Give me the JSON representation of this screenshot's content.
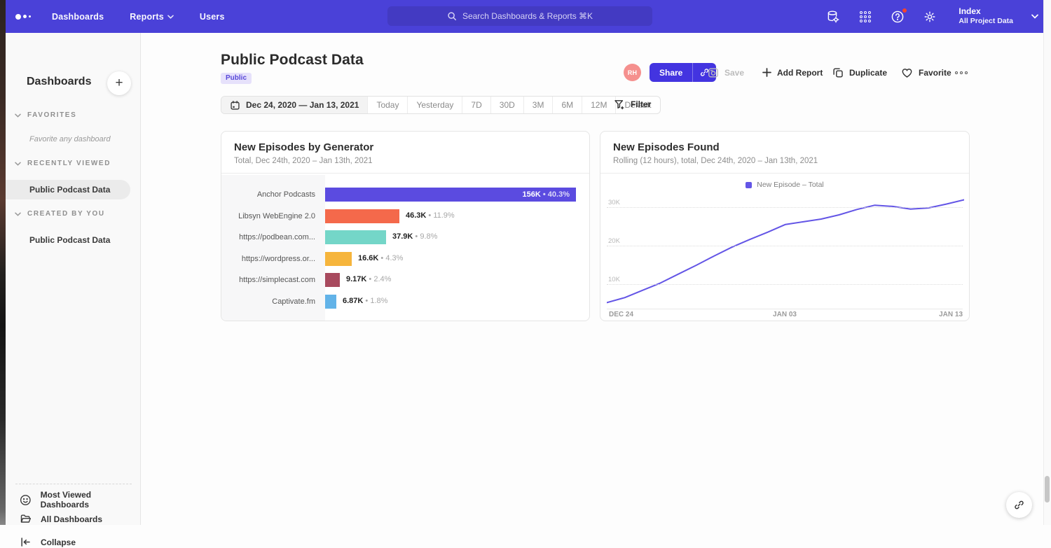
{
  "colors": {
    "nav": "#4a41d8",
    "accent": "#4334e0",
    "badge_bg": "#e6e1fb",
    "badge_text": "#5747d8",
    "avatar_bg": "#f5908e"
  },
  "nav": {
    "items": [
      "Dashboards",
      "Reports",
      "Users"
    ],
    "search_placeholder": "Search Dashboards & Reports ⌘K",
    "project_name": "Index",
    "project_subtitle": "All Project Data",
    "icons": [
      "data-sources-icon",
      "apps-grid-icon",
      "help-icon",
      "settings-gear-icon"
    ]
  },
  "sidebar": {
    "title": "Dashboards",
    "sections": [
      {
        "label": "FAVORITES",
        "hint": "Favorite any dashboard"
      },
      {
        "label": "RECENTLY VIEWED",
        "item": "Public Podcast Data"
      },
      {
        "label": "CREATED BY YOU",
        "item": "Public Podcast Data"
      }
    ],
    "footer": [
      {
        "label": "Most Viewed Dashboards",
        "icon": "smiley-icon"
      },
      {
        "label": "All Dashboards",
        "icon": "folder-icon"
      },
      {
        "label": "Collapse",
        "icon": "collapse-icon"
      }
    ]
  },
  "header": {
    "title": "Public Podcast Data",
    "badge": "Public",
    "avatar": "RH",
    "share": "Share",
    "save": "Save",
    "add_report": "Add Report",
    "duplicate": "Duplicate",
    "favorite": "Favorite"
  },
  "toolbar": {
    "date_range": "Dec 24, 2020 — Jan 13, 2021",
    "range_options": [
      "Today",
      "Yesterday",
      "7D",
      "30D",
      "3M",
      "6M",
      "12M",
      "Default"
    ],
    "filter": "Filter"
  },
  "chart_data": [
    {
      "type": "bar",
      "orientation": "horizontal",
      "title": "New Episodes by Generator",
      "subtitle": "Total, Dec 24th, 2020 – Jan 13th, 2021",
      "categories": [
        "Anchor Podcasts",
        "Libsyn WebEngine 2.0",
        "https://podbean.com...",
        "https://wordpress.or...",
        "https://simplecast.com",
        "Captivate.fm"
      ],
      "values": [
        156000,
        46300,
        37900,
        16600,
        9170,
        6870
      ],
      "value_labels": [
        "156K",
        "46.3K",
        "37.9K",
        "16.6K",
        "9.17K",
        "6.87K"
      ],
      "percent_labels": [
        "40.3%",
        "11.9%",
        "9.8%",
        "4.3%",
        "2.4%",
        "1.8%"
      ],
      "colors": [
        "#5b4be0",
        "#f4694b",
        "#74d6c8",
        "#f6b53c",
        "#a84a5e",
        "#62b3e8"
      ],
      "bar_scale_max": 156000,
      "label_inside": [
        true,
        false,
        false,
        false,
        false,
        false
      ]
    },
    {
      "type": "line",
      "title": "New Episodes Found",
      "subtitle": "Rolling (12 hours), total, Dec 24th, 2020 – Jan 13th, 2021",
      "legend": "New Episode – Total",
      "line_color": "#6355e6",
      "x": [
        "Dec 24",
        "Dec 25",
        "Dec 26",
        "Dec 27",
        "Dec 28",
        "Dec 29",
        "Dec 30",
        "Dec 31",
        "Jan 01",
        "Jan 02",
        "Jan 03",
        "Jan 04",
        "Jan 05",
        "Jan 06",
        "Jan 07",
        "Jan 08",
        "Jan 09",
        "Jan 10",
        "Jan 11",
        "Jan 12",
        "Jan 13"
      ],
      "values": [
        5200,
        6500,
        8400,
        10300,
        12600,
        14900,
        17300,
        19600,
        21600,
        23500,
        25500,
        26200,
        26900,
        28000,
        29400,
        30500,
        30200,
        29500,
        29800,
        30800,
        31900
      ],
      "xticks": [
        "DEC 24",
        "JAN 03",
        "JAN 13"
      ],
      "yticks": [
        {
          "value": 10000,
          "label": "10K"
        },
        {
          "value": 20000,
          "label": "20K"
        },
        {
          "value": 30000,
          "label": "30K"
        }
      ],
      "ylim": [
        3455,
        33818
      ],
      "grid": true,
      "legend_position": "top"
    }
  ]
}
